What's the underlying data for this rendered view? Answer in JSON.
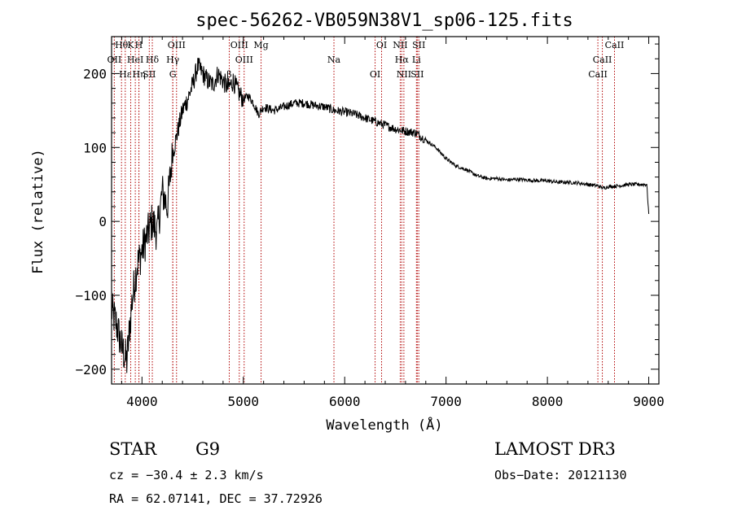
{
  "chart_data": {
    "type": "line",
    "title": "spec-56262-VB059N38V1_sp06-125.fits",
    "xlabel": "Wavelength (Å)",
    "ylabel": "Flux (relative)",
    "xlim": [
      3700,
      9100
    ],
    "ylim": [
      -220,
      250
    ],
    "xticks": [
      4000,
      5000,
      6000,
      7000,
      8000,
      9000
    ],
    "yticks": [
      -200,
      -100,
      0,
      100,
      200
    ],
    "xtick_labels": [
      "4000",
      "5000",
      "6000",
      "7000",
      "8000",
      "9000"
    ],
    "ytick_labels": [
      "−200",
      "−100",
      "0",
      "100",
      "200"
    ],
    "series": [
      {
        "name": "spectrum",
        "x": [
          3700,
          3750,
          3800,
          3850,
          3900,
          3950,
          4000,
          4050,
          4100,
          4150,
          4200,
          4250,
          4300,
          4350,
          4400,
          4450,
          4500,
          4550,
          4600,
          4650,
          4700,
          4750,
          4800,
          4850,
          4900,
          4950,
          5000,
          5050,
          5100,
          5150,
          5200,
          5300,
          5400,
          5500,
          5600,
          5700,
          5800,
          5900,
          6000,
          6100,
          6200,
          6300,
          6400,
          6500,
          6600,
          6700,
          6800,
          6900,
          7000,
          7100,
          7200,
          7300,
          7400,
          7500,
          7600,
          7700,
          7800,
          7900,
          8000,
          8100,
          8200,
          8300,
          8400,
          8500,
          8550,
          8600,
          8700,
          8800,
          8900,
          8980,
          9000
        ],
        "y": [
          -120,
          -140,
          -170,
          -190,
          -110,
          -60,
          -40,
          -20,
          0,
          -15,
          40,
          20,
          90,
          120,
          150,
          165,
          185,
          210,
          200,
          190,
          185,
          200,
          190,
          180,
          190,
          175,
          165,
          170,
          160,
          145,
          155,
          150,
          155,
          160,
          160,
          157,
          155,
          150,
          148,
          145,
          140,
          135,
          130,
          125,
          122,
          120,
          110,
          100,
          85,
          75,
          70,
          62,
          58,
          58,
          56,
          57,
          56,
          55,
          55,
          53,
          53,
          52,
          50,
          48,
          45,
          47,
          48,
          50,
          50,
          50,
          10
        ]
      }
    ],
    "line_markers": [
      {
        "label": "Hθ",
        "x": 3798
      },
      {
        "label": "OII",
        "x": 3727
      },
      {
        "label": "Hε",
        "x": 3835
      },
      {
        "label": "K",
        "x": 3889
      },
      {
        "label": "HeI",
        "x": 3934
      },
      {
        "label": "Hη",
        "x": 3970
      },
      {
        "label": "H",
        "x": 3969
      },
      {
        "label": "Hδ",
        "x": 4102
      },
      {
        "label": "SII",
        "x": 4072
      },
      {
        "label": "OIII",
        "x": 4341
      },
      {
        "label": "Hγ",
        "x": 4304
      },
      {
        "label": "G",
        "x": 4304
      },
      {
        "label": "OIII",
        "x": 4960
      },
      {
        "label": "OIII",
        "x": 5008
      },
      {
        "label": "β",
        "x": 4861
      },
      {
        "label": "Mg",
        "x": 5175
      },
      {
        "label": "Na",
        "x": 5894
      },
      {
        "label": "OI",
        "x": 6300
      },
      {
        "label": "OI",
        "x": 6364
      },
      {
        "label": "Hα",
        "x": 6563
      },
      {
        "label": "SII",
        "x": 6716
      },
      {
        "label": "NII",
        "x": 6548
      },
      {
        "label": "Li",
        "x": 6708
      },
      {
        "label": "NII",
        "x": 6584
      },
      {
        "label": "SII",
        "x": 6731
      },
      {
        "label": "CaII",
        "x": 8542
      },
      {
        "label": "CaII",
        "x": 8498
      },
      {
        "label": "CaII",
        "x": 8662
      }
    ]
  },
  "info": {
    "object_class": "STAR",
    "subclass": "G9",
    "survey": "LAMOST DR3",
    "redshift_text": "cz = −30.4 ± 2.3 km/s",
    "obs_date_text": "Obs−Date: 20121130",
    "coords_text": "RA =  62.07141, DEC =  37.72926"
  }
}
